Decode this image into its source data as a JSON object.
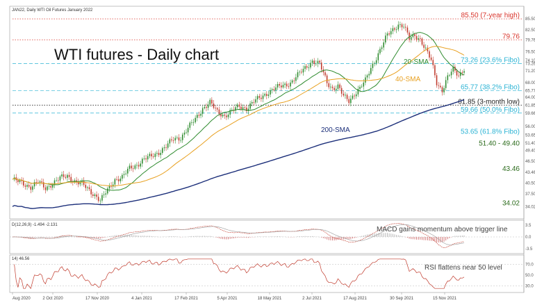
{
  "header": {
    "ticker_text": "JAN22, Daily  WTI Oil Futures January 2022"
  },
  "chart_data": {
    "type": "candlestick",
    "title": "WTI futures - Daily chart",
    "x_dates": [
      "Aug 2020",
      "2 Oct 2020",
      "17 Nov 2020",
      "4 Jan 2021",
      "17 Feb 2021",
      "5 Apr 2021",
      "18 May 2021",
      "2 Jul 2021",
      "17 Aug 2021",
      "30 Sep 2021",
      "15 Nov 2021"
    ],
    "ylim": [
      32,
      88
    ],
    "y_ticks": [
      {
        "label": "85.50",
        "value": 85.5
      },
      {
        "label": "82.50",
        "value": 82.5
      },
      {
        "label": "79.76",
        "value": 79.76
      },
      {
        "label": "76.50",
        "value": 76.5
      },
      {
        "label": "74.10",
        "value": 74.1
      },
      {
        "label": "73.26",
        "value": 73.26
      },
      {
        "label": "71.20",
        "value": 71.2
      },
      {
        "label": "68.00",
        "value": 68.0
      },
      {
        "label": "65.77",
        "value": 65.77
      },
      {
        "label": "64.00",
        "value": 64.0
      },
      {
        "label": "61.85",
        "value": 61.85
      },
      {
        "label": "59.66",
        "value": 59.66
      },
      {
        "label": "56.00",
        "value": 56.0
      },
      {
        "label": "53.65",
        "value": 53.65
      },
      {
        "label": "51.40",
        "value": 51.4
      },
      {
        "label": "49.40",
        "value": 49.4
      },
      {
        "label": "46.50",
        "value": 46.5
      },
      {
        "label": "43.46",
        "value": 43.46
      },
      {
        "label": "40.50",
        "value": 40.5
      },
      {
        "label": "37.50",
        "value": 37.5
      },
      {
        "label": "34.02",
        "value": 34.02
      }
    ],
    "levels": [
      {
        "label": "85.50 (7-year high)",
        "value": 85.5,
        "style": "dotted",
        "color": "#d9342b",
        "line": true
      },
      {
        "label": "79.76",
        "value": 79.76,
        "style": "dotted",
        "color": "#d9342b",
        "line": true
      },
      {
        "label": "73.26 (23.6% Fibo)",
        "value": 73.26,
        "style": "dashed",
        "color": "#2bb3d4",
        "line": true
      },
      {
        "label": "65.77 (38.2% Fibo)",
        "value": 65.77,
        "style": "dashed",
        "color": "#2bb3d4",
        "line": true
      },
      {
        "label": "61.85 (3-month low)",
        "value": 61.85,
        "style": "dotted",
        "color": "#222222",
        "line": true
      },
      {
        "label": "59.66 (50.0% Fibo)",
        "value": 59.66,
        "style": "dashed",
        "color": "#2bb3d4",
        "line": true
      },
      {
        "label": "53.65 (61.8% Fibo)",
        "value": 53.65,
        "style": "none",
        "color": "#2bb3d4",
        "line": false
      },
      {
        "label": "51.40 - 49.40",
        "value": 50.4,
        "style": "none",
        "color": "#2a6a1a",
        "line": false
      },
      {
        "label": "43.46",
        "value": 43.46,
        "style": "none",
        "color": "#2a6a1a",
        "line": false
      },
      {
        "label": "34.02",
        "value": 34.02,
        "style": "none",
        "color": "#2a6a1a",
        "line": false
      }
    ],
    "price_anchors": [
      [
        0,
        41.5
      ],
      [
        6,
        40.2
      ],
      [
        10,
        39.5
      ],
      [
        14,
        40.8
      ],
      [
        18,
        39.0
      ],
      [
        22,
        40.5
      ],
      [
        26,
        41.8
      ],
      [
        30,
        42.4
      ],
      [
        34,
        41.0
      ],
      [
        38,
        40.2
      ],
      [
        42,
        38.5
      ],
      [
        46,
        36.8
      ],
      [
        48,
        35.6
      ],
      [
        52,
        38.5
      ],
      [
        56,
        41.5
      ],
      [
        60,
        42.0
      ],
      [
        64,
        44.5
      ],
      [
        68,
        45.5
      ],
      [
        72,
        47.0
      ],
      [
        76,
        47.8
      ],
      [
        80,
        49.0
      ],
      [
        84,
        50.5
      ],
      [
        88,
        52.5
      ],
      [
        92,
        53.0
      ],
      [
        96,
        55.5
      ],
      [
        100,
        58.0
      ],
      [
        104,
        61.0
      ],
      [
        108,
        62.5
      ],
      [
        112,
        60.0
      ],
      [
        116,
        59.0
      ],
      [
        120,
        60.2
      ],
      [
        124,
        61.5
      ],
      [
        128,
        61.0
      ],
      [
        132,
        62.8
      ],
      [
        136,
        64.0
      ],
      [
        140,
        65.5
      ],
      [
        144,
        66.5
      ],
      [
        148,
        67.2
      ],
      [
        152,
        68.0
      ],
      [
        156,
        70.0
      ],
      [
        160,
        72.0
      ],
      [
        164,
        74.0
      ],
      [
        168,
        73.0
      ],
      [
        170,
        70.5
      ],
      [
        172,
        68.0
      ],
      [
        175,
        66.5
      ],
      [
        178,
        67.0
      ],
      [
        181,
        64.2
      ],
      [
        184,
        63.0
      ],
      [
        187,
        65.0
      ],
      [
        190,
        66.5
      ],
      [
        193,
        68.5
      ],
      [
        196,
        72.0
      ],
      [
        199,
        75.0
      ],
      [
        202,
        78.0
      ],
      [
        205,
        81.0
      ],
      [
        208,
        82.5
      ],
      [
        211,
        84.0
      ],
      [
        214,
        83.5
      ],
      [
        217,
        80.0
      ],
      [
        220,
        81.0
      ],
      [
        223,
        80.0
      ],
      [
        226,
        77.0
      ],
      [
        229,
        74.0
      ],
      [
        232,
        68.0
      ],
      [
        235,
        66.0
      ],
      [
        238,
        69.5
      ],
      [
        241,
        71.5
      ],
      [
        244,
        70.0
      ],
      [
        247,
        72.0
      ]
    ],
    "series": [
      {
        "name": "20-SMA",
        "color": "#2e8b2e",
        "window": 20
      },
      {
        "name": "40-SMA",
        "color": "#e8a020",
        "window": 40
      },
      {
        "name": "200-SMA",
        "color": "#1c2f7a",
        "window": 200
      }
    ],
    "up_color": "#2e8b2e",
    "down_color": "#c0392b"
  },
  "macd": {
    "header": "D(12,26,9) -1.494 -2.131",
    "annotation": "MACD gains momentum above trigger line",
    "ylim": [
      -4.5,
      4.5
    ],
    "ticks": [
      {
        "label": "3.5",
        "value": 3.5
      },
      {
        "label": "0.0",
        "value": 0.0
      },
      {
        "label": "-3.5",
        "value": -3.5
      }
    ]
  },
  "rsi": {
    "header": "14) 46.56",
    "annotation": "RSI flattens near 50 level",
    "ylim": [
      20,
      85
    ],
    "ticks": [
      {
        "label": "70.0",
        "value": 70
      },
      {
        "label": "50.0",
        "value": 50
      },
      {
        "label": "30.0",
        "value": 30
      }
    ]
  }
}
